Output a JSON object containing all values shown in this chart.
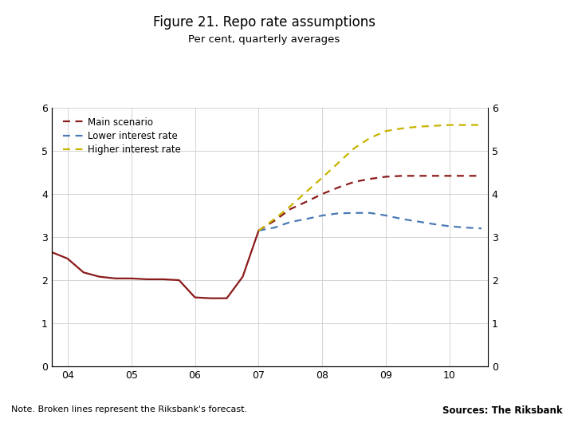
{
  "title": "Figure 21. Repo rate assumptions",
  "subtitle": "Per cent, quarterly averages",
  "note": "Note. Broken lines represent the Riksbank's forecast.",
  "sources": "Sources: The Riksbank",
  "xticks": [
    4,
    5,
    6,
    7,
    8,
    9,
    10
  ],
  "xticklabels": [
    "04",
    "05",
    "06",
    "07",
    "08",
    "09",
    "10"
  ],
  "yticks": [
    0,
    1,
    2,
    3,
    4,
    5,
    6
  ],
  "main_solid_x": [
    3.75,
    4.0,
    4.25,
    4.5,
    4.75,
    5.0,
    5.25,
    5.5,
    5.75,
    6.0,
    6.25,
    6.5,
    6.75,
    7.0
  ],
  "main_solid_y": [
    2.65,
    2.5,
    2.18,
    2.08,
    2.04,
    2.04,
    2.02,
    2.02,
    2.0,
    1.6,
    1.58,
    1.58,
    2.08,
    3.15
  ],
  "main_dashed_x": [
    7.0,
    7.25,
    7.5,
    7.75,
    8.0,
    8.25,
    8.5,
    8.75,
    9.0,
    9.25,
    9.5,
    9.75,
    10.0,
    10.25,
    10.5
  ],
  "main_dashed_y": [
    3.15,
    3.38,
    3.65,
    3.82,
    4.0,
    4.15,
    4.28,
    4.35,
    4.4,
    4.42,
    4.42,
    4.42,
    4.42,
    4.42,
    4.42
  ],
  "lower_dashed_x": [
    7.0,
    7.25,
    7.5,
    7.75,
    8.0,
    8.25,
    8.5,
    8.75,
    9.0,
    9.25,
    9.5,
    9.75,
    10.0,
    10.25,
    10.5
  ],
  "lower_dashed_y": [
    3.15,
    3.22,
    3.35,
    3.42,
    3.5,
    3.55,
    3.56,
    3.56,
    3.5,
    3.42,
    3.36,
    3.3,
    3.25,
    3.22,
    3.2
  ],
  "higher_dashed_x": [
    7.0,
    7.25,
    7.5,
    7.75,
    8.0,
    8.25,
    8.5,
    8.75,
    9.0,
    9.25,
    9.5,
    9.75,
    10.0,
    10.25,
    10.5
  ],
  "higher_dashed_y": [
    3.15,
    3.42,
    3.72,
    4.05,
    4.38,
    4.72,
    5.06,
    5.3,
    5.46,
    5.52,
    5.56,
    5.58,
    5.6,
    5.6,
    5.6
  ],
  "main_color": "#8b1a1a",
  "lower_color": "#4a7ab5",
  "higher_color": "#c8b400",
  "legend_labels": [
    "Main scenario",
    "Lower interest rate",
    "Higher interest rate"
  ],
  "grid_color": "#cccccc",
  "blue_bar_color": "#1f3d7a",
  "logo_bg_color": "#1f3d7a"
}
